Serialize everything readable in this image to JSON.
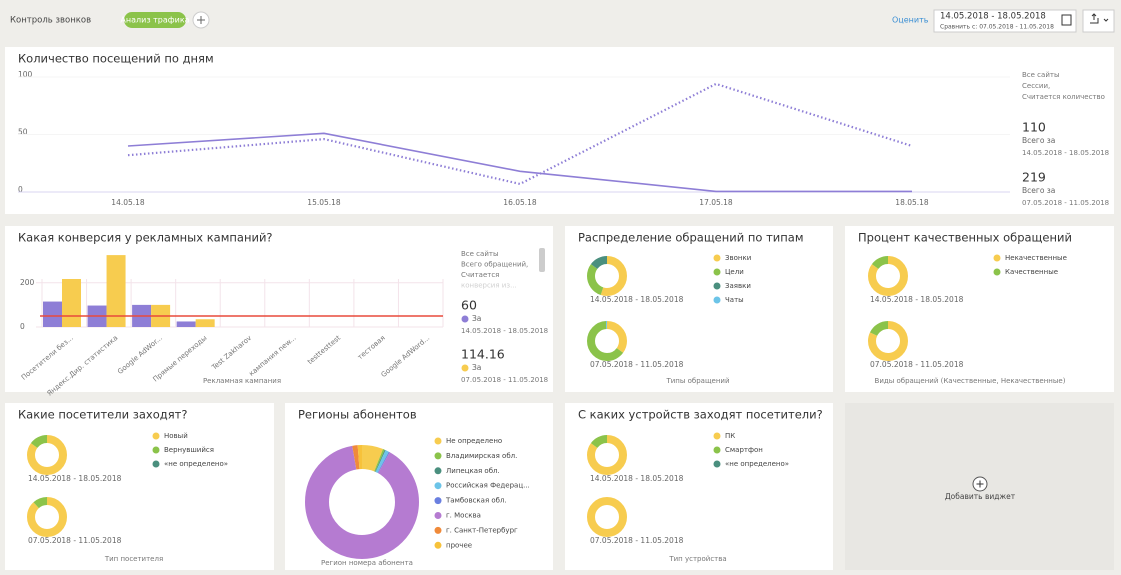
{
  "header": {
    "tabs": [
      "Контроль звонков",
      "Анализ трафика"
    ],
    "rate_link": "Оценить",
    "date_range": "14.05.2018 - 18.05.2018",
    "compare": "Сравнить с: 07.05.2018 - 11.05.2018"
  },
  "add_widget": "Добавить виджет",
  "chart_data": [
    {
      "type": "line",
      "title": "Количество посещений по дням",
      "categories": [
        "14.05.18",
        "15.05.18",
        "16.05.18",
        "17.05.18",
        "18.05.18"
      ],
      "series": [
        {
          "color": "#8e7ed6",
          "style": "solid",
          "values": [
            40,
            51,
            18,
            0.5,
            0.5
          ]
        },
        {
          "color": "#8e7ed6",
          "style": "dotted",
          "values": [
            32,
            46,
            7,
            94,
            40
          ]
        }
      ],
      "ylim": [
        0,
        100
      ],
      "yticks": [
        0,
        50,
        100
      ],
      "grid": true,
      "note": [
        "Все сайты",
        "Сессии,",
        "Считается количество"
      ],
      "totals": [
        {
          "value": 110,
          "label": "Всего за",
          "period": "14.05.2018 - 18.05.2018"
        },
        {
          "value": 219,
          "label": "Всего за",
          "period": "07.05.2018 - 11.05.2018"
        }
      ]
    },
    {
      "type": "bar",
      "title": "Какая конверсия у рекламных кампаний?",
      "categories": [
        "Посетители без...",
        "Яндекс.Дир. статистика",
        "Google AdWor...",
        "Прямые переходы",
        "Test Zakharov",
        "кампания new...",
        "testtesttest",
        "тестовая",
        "Google AdWord..."
      ],
      "series": [
        {
          "color": "#8e7ed6",
          "values": [
            115,
            97,
            100,
            25,
            0,
            0,
            0,
            0,
            0
          ]
        },
        {
          "color": "#f7cc4f",
          "values": [
            217,
            325,
            100,
            35,
            0,
            0,
            0,
            0,
            0
          ]
        }
      ],
      "reference_line": {
        "value": 50,
        "color": "#e84a3b"
      },
      "ylim": [
        0,
        330
      ],
      "yticks": [
        0,
        200
      ],
      "grid": true,
      "xlabel": "Рекламная кампания",
      "note": [
        "Все сайты",
        "Всего обращений,",
        "Считается",
        "конверсия из..."
      ],
      "totals": [
        {
          "value": 60,
          "label": "За",
          "period": "14.05.2018 - 18.05.2018"
        },
        {
          "value": 114.16,
          "label": "За",
          "period": "07.05.2018 - 11.05.2018"
        }
      ]
    },
    {
      "type": "donut",
      "title": "Распределение обращений по типам",
      "categories": [
        "Звонки",
        "Цели",
        "Заявки",
        "Чаты"
      ],
      "colors": [
        "#f7cc4f",
        "#8bc34a",
        "#4a8f7e",
        "#6cc4e8"
      ],
      "series": [
        {
          "name": "14.05.2018 - 18.05.2018",
          "values": [
            55,
            30,
            15,
            0
          ]
        },
        {
          "name": "07.05.2018 - 11.05.2018",
          "values": [
            35,
            64,
            0,
            1
          ]
        }
      ],
      "xlabel": "Типы обращений"
    },
    {
      "type": "donut",
      "title": "Процент качественных обращений",
      "categories": [
        "Некачественные",
        "Качественные"
      ],
      "colors": [
        "#f7cc4f",
        "#8bc34a"
      ],
      "series": [
        {
          "name": "14.05.2018 - 18.05.2018",
          "values": [
            85,
            15
          ]
        },
        {
          "name": "07.05.2018 - 11.05.2018",
          "values": [
            82,
            18
          ]
        }
      ],
      "xlabel": "Виды обращений (Качественные, Некачественные)"
    },
    {
      "type": "donut",
      "title": "Какие посетители заходят?",
      "categories": [
        "Новый",
        "Вернувшийся",
        "«не определено»"
      ],
      "colors": [
        "#f7cc4f",
        "#8bc34a",
        "#4a8f7e"
      ],
      "series": [
        {
          "name": "14.05.2018 - 18.05.2018",
          "values": [
            85,
            15,
            0
          ]
        },
        {
          "name": "07.05.2018 - 11.05.2018",
          "values": [
            88,
            12,
            0
          ]
        }
      ],
      "xlabel": "Тип посетителя"
    },
    {
      "type": "donut",
      "title": "Регионы абонентов",
      "categories": [
        "Не определено",
        "Владимирская обл.",
        "Липецкая обл.",
        "Российская Федерац...",
        "Тамбовская обл.",
        "г. Москва",
        "г. Санкт-Петербург",
        "прочее"
      ],
      "colors": [
        "#f7cc4f",
        "#8bc34a",
        "#4a8f7e",
        "#6cc4e8",
        "#6a7fe0",
        "#b57bd1",
        "#f08a3a",
        "#f7c23a"
      ],
      "values": [
        6,
        0.5,
        0.3,
        1,
        0.3,
        89,
        1.5,
        1.4
      ],
      "xlabel": "Регион номера абонента"
    },
    {
      "type": "donut",
      "title": "С каких устройств заходят посетители?",
      "categories": [
        "ПК",
        "Смартфон",
        "«не определено»"
      ],
      "colors": [
        "#f7cc4f",
        "#8bc34a",
        "#4a8f7e"
      ],
      "series": [
        {
          "name": "14.05.2018 - 18.05.2018",
          "values": [
            85,
            15,
            0
          ]
        },
        {
          "name": "07.05.2018 - 11.05.2018",
          "values": [
            100,
            0,
            0
          ]
        }
      ],
      "xlabel": "Тип устройства"
    }
  ]
}
